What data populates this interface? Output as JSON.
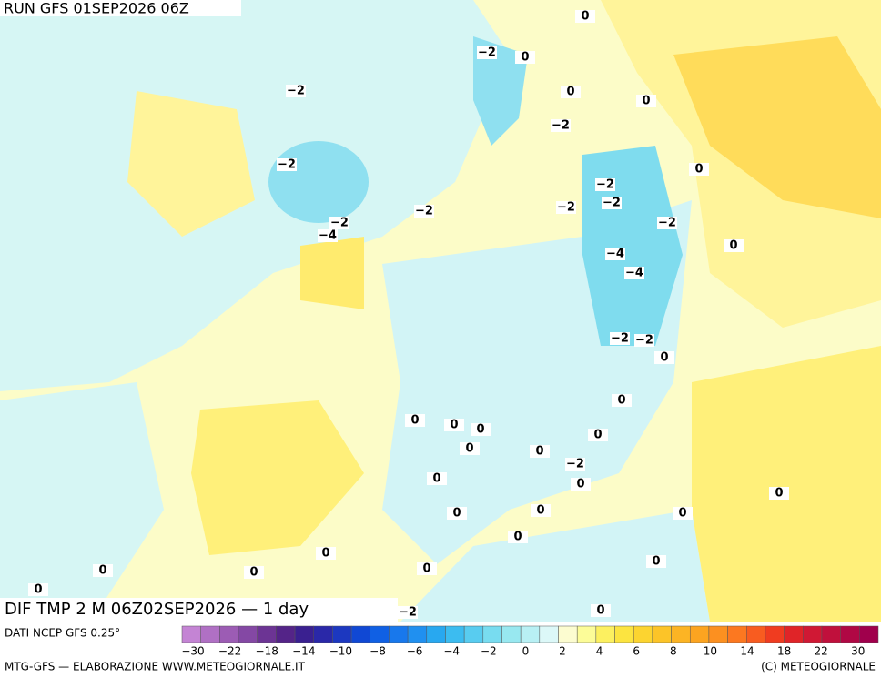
{
  "header": {
    "run": "RUN GFS 01SEP2026 06Z"
  },
  "map": {
    "field_label": "DIF TMP 2 M 06Z02SEP2026 — 1 day",
    "contour_labels": [
      "0",
      "−2",
      "0",
      "−2",
      "0",
      "0",
      "−2",
      "−2",
      "0",
      "−2",
      "−2",
      "−2",
      "−2",
      "−2",
      "−2",
      "−4",
      "0",
      "−4",
      "−4",
      "−2",
      "−2",
      "0",
      "0",
      "0",
      "0",
      "0",
      "0",
      "0",
      "0",
      "−2",
      "0",
      "0",
      "0",
      "0",
      "0",
      "0",
      "0",
      "0",
      "0",
      "0",
      "0",
      "0",
      "0",
      "0",
      "−2"
    ]
  },
  "legend": {
    "source": "DATI NCEP GFS 0.25°",
    "scale_labels": [
      "−30",
      "−22",
      "−18",
      "−14",
      "−10",
      "−8",
      "−6",
      "−4",
      "−2",
      "0",
      "2",
      "4",
      "6",
      "8",
      "10",
      "14",
      "18",
      "22",
      "30"
    ]
  },
  "footer": {
    "credit": "MTG-GFS — ELABORAZIONE WWW.METEOGIORNALE.IT",
    "copyright": "(C) METEOGIORNALE"
  }
}
